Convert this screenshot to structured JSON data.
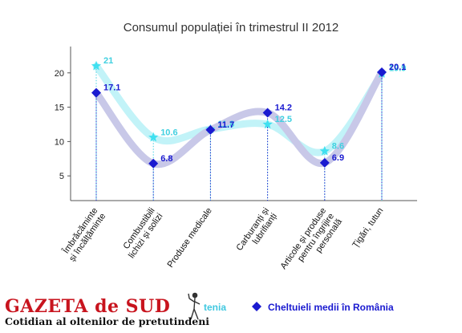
{
  "chart_data": {
    "type": "line",
    "title": "Consumul populației în trimestrul II 2012",
    "categories": [
      [
        "Îmbrăcăminte",
        "și încălțăminte"
      ],
      [
        "Combustibili",
        "lichizi și solizi"
      ],
      [
        "Produse medicale"
      ],
      [
        "Carburanți și",
        "lubrifianți"
      ],
      [
        "Articole și produse",
        "pentru îngrijire",
        "personală"
      ],
      [
        "Țigări, tutun"
      ]
    ],
    "series": [
      {
        "legend_partial": "tenia",
        "marker": "star",
        "color": "#40e0f0",
        "values": [
          21,
          10.6,
          11.8,
          12.5,
          8.6,
          19.9
        ]
      },
      {
        "name": "Cheltuieli medii în România",
        "marker": "diamond",
        "color": "#1a1ad0",
        "values": [
          17.1,
          6.8,
          11.7,
          14.2,
          6.9,
          20.1
        ]
      }
    ],
    "yticks": [
      5,
      10,
      15,
      20
    ],
    "ylim": [
      0,
      25
    ],
    "grid": false,
    "legend_position": "bottom-right"
  },
  "logo": {
    "name": "GAZETA de SUD",
    "tagline": "Cotidian al oltenilor de pretutindeni"
  }
}
